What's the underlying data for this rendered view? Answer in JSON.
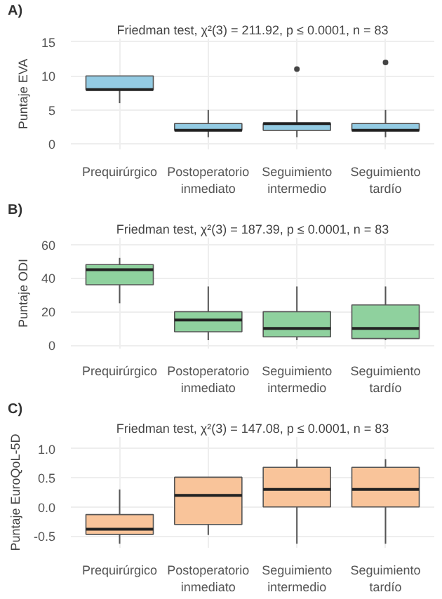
{
  "chart_data": [
    {
      "type": "box",
      "title": "Friedman test, χ²(3) = 211.92, p ≤ 0.0001, n = 83",
      "annotations": [
        "A)"
      ],
      "ylabel": "Puntaje EVA",
      "categories": [
        "Prequirúrgico",
        "Postoperatorio\ninmediato",
        "Seguimiento\nintermedio",
        "Seguimiento\ntardío"
      ],
      "color": "#93cbe3",
      "ylim": [
        -0.8,
        15.5
      ],
      "yticks": [
        0,
        5,
        10,
        15
      ],
      "grid": true,
      "boxes": [
        {
          "low": 6,
          "q1": 8,
          "median": 8,
          "q3": 10,
          "high": 10
        },
        {
          "low": 1,
          "q1": 2,
          "median": 2,
          "q3": 3,
          "high": 5
        },
        {
          "low": 1,
          "q1": 2,
          "median": 3,
          "q3": 3,
          "high": 5,
          "outliers": [
            11
          ]
        },
        {
          "low": 1,
          "q1": 2,
          "median": 2,
          "q3": 3,
          "high": 5,
          "outliers": [
            12
          ]
        }
      ]
    },
    {
      "type": "box",
      "title": "Friedman test, χ²(3) = 187.39, p ≤ 0.0001, n = 83",
      "annotations": [
        "B)"
      ],
      "ylabel": "Puntaje ODI",
      "categories": [
        "Prequirúrgico",
        "Postoperatorio\ninmediato",
        "Seguimiento\nintermedio",
        "Seguimiento\ntardío"
      ],
      "color": "#8fd19e",
      "ylim": [
        -2,
        64
      ],
      "yticks": [
        0,
        20,
        40,
        60
      ],
      "grid": true,
      "boxes": [
        {
          "low": 25,
          "q1": 36,
          "median": 45,
          "q3": 48,
          "high": 52
        },
        {
          "low": 3,
          "q1": 8,
          "median": 15,
          "q3": 20,
          "high": 35
        },
        {
          "low": 3,
          "q1": 5,
          "median": 10,
          "q3": 20,
          "high": 35
        },
        {
          "low": 3,
          "q1": 4,
          "median": 10,
          "q3": 24,
          "high": 35
        }
      ]
    },
    {
      "type": "box",
      "title": "Friedman test, χ²(3) = 147.08, p ≤ 0.0001, n = 83",
      "annotations": [
        "C)"
      ],
      "ylabel": "Puntaje EuroQoL-5D",
      "categories": [
        "Prequirúrgico",
        "Postoperatorio\ninmediato",
        "Seguimiento\nintermedio",
        "Seguimiento\ntardío"
      ],
      "color": "#f9c49a",
      "ylim": [
        -0.7,
        1.2
      ],
      "yticks": [
        {
          "value": -0.5,
          "label": "-0.5"
        },
        {
          "value": 0,
          "label": "0.0"
        },
        {
          "value": 0.5,
          "label": "0.5"
        },
        {
          "value": 1,
          "label": "1.0"
        }
      ],
      "grid": true,
      "boxes": [
        {
          "low": -0.63,
          "q1": -0.47,
          "median": -0.38,
          "q3": -0.13,
          "high": 0.3
        },
        {
          "low": -0.48,
          "q1": -0.3,
          "median": 0.2,
          "q3": 0.51,
          "high": 0.51
        },
        {
          "low": -0.63,
          "q1": 0,
          "median": 0.3,
          "q3": 0.68,
          "high": 0.82
        },
        {
          "low": -0.63,
          "q1": 0,
          "median": 0.3,
          "q3": 0.68,
          "high": 0.82
        }
      ]
    }
  ]
}
